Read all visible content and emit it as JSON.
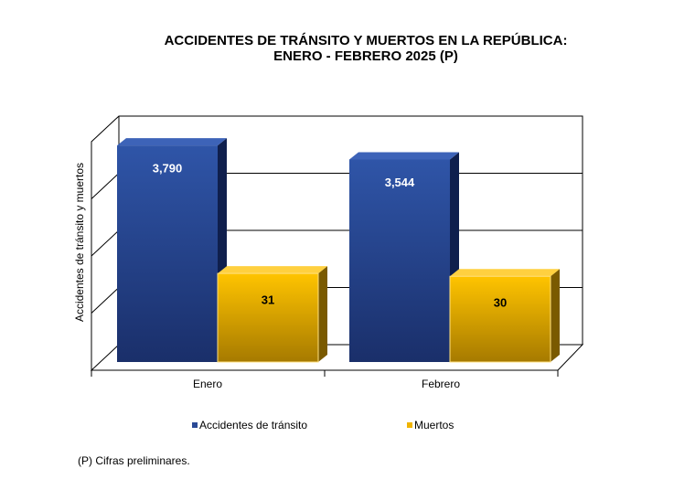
{
  "chart_data": {
    "type": "bar3d",
    "title": "ACCIDENTES DE TRÁNSITO Y MUERTOS EN LA REPÚBLICA:",
    "subtitle": "ENERO - FEBRERO 2025 (P)",
    "ylabel": "Accidentes de tránsito y muertos",
    "categories": [
      "Enero",
      "Febrero"
    ],
    "series": [
      {
        "name": "Accidentes de tránsito",
        "color": "#2a4a96",
        "values": [
          3790,
          3544
        ],
        "value_labels": [
          "3,790",
          "3,544"
        ]
      },
      {
        "name": "Muertos",
        "color": "#f0b400",
        "axis": "y2",
        "values": [
          31,
          30
        ]
      }
    ],
    "ylim": [
      0,
      4000
    ],
    "y2lim": [
      0,
      80
    ],
    "grid": true,
    "note": "(P) Cifras preliminares."
  }
}
